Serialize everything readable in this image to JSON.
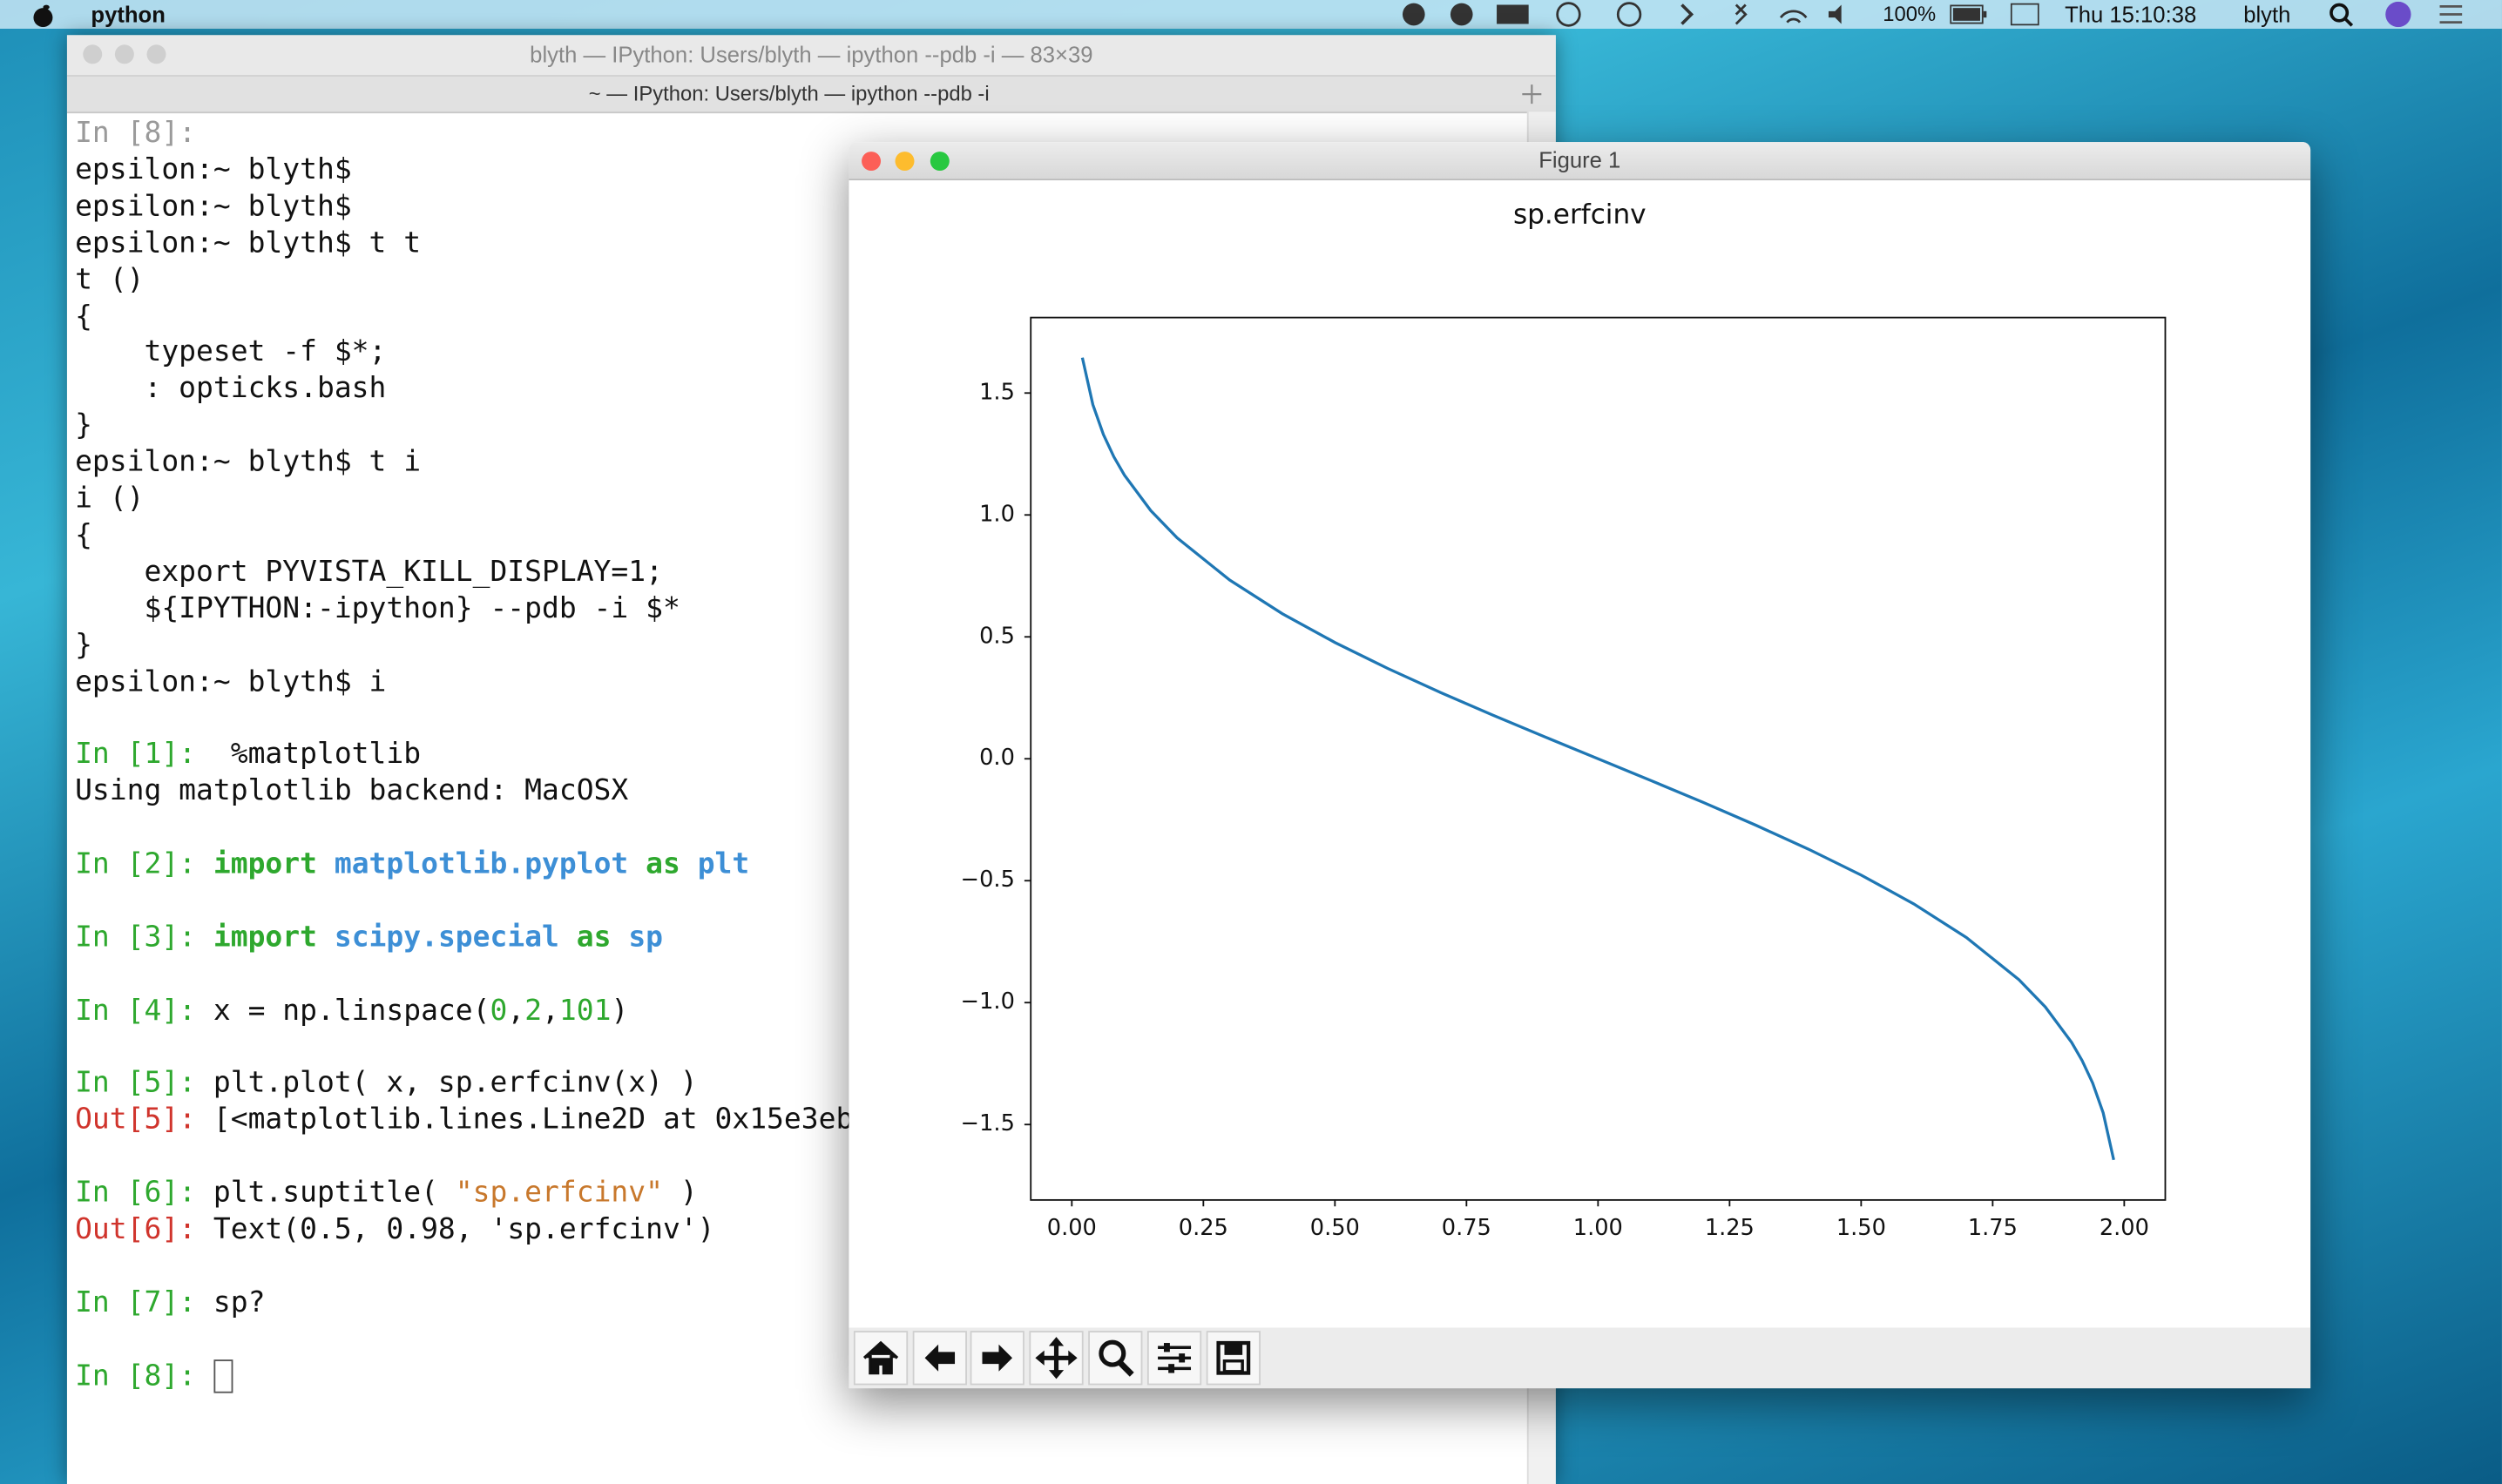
{
  "menu_bar": {
    "app": "python",
    "battery": "100%",
    "clock": "Thu 15:10:38",
    "user": "blyth"
  },
  "terminal": {
    "title": "blyth — IPython: Users/blyth — ipython --pdb -i — 83×39",
    "tab": "~ — IPython: Users/blyth — ipython --pdb -i",
    "lines": [
      [
        {
          "text": "In [8]:",
          "color": "#9a9a9a"
        }
      ],
      [
        {
          "text": "epsilon:~ blyth$"
        }
      ],
      [
        {
          "text": "epsilon:~ blyth$"
        }
      ],
      [
        {
          "text": "epsilon:~ blyth$ t t"
        }
      ],
      [
        {
          "text": "t ()"
        }
      ],
      [
        {
          "text": "{"
        }
      ],
      [
        {
          "text": "    typeset -f $*;"
        }
      ],
      [
        {
          "text": "    : opticks.bash"
        }
      ],
      [
        {
          "text": "}"
        }
      ],
      [
        {
          "text": "epsilon:~ blyth$ t i"
        }
      ],
      [
        {
          "text": "i ()"
        }
      ],
      [
        {
          "text": "{"
        }
      ],
      [
        {
          "text": "    export PYVISTA_KILL_DISPLAY=1;"
        }
      ],
      [
        {
          "text": "    ${IPYTHON:-ipython} --pdb -i $*"
        }
      ],
      [
        {
          "text": "}"
        }
      ],
      [
        {
          "text": "epsilon:~ blyth$ i"
        }
      ],
      [],
      [
        {
          "text": "In [1]: ",
          "color": "#2ea82e"
        },
        {
          "text": " %matplotlib"
        }
      ],
      [
        {
          "text": "Using matplotlib backend: MacOSX"
        }
      ],
      [],
      [
        {
          "text": "In [2]: ",
          "color": "#2ea82e"
        },
        {
          "text": "import",
          "color": "#2ea82e",
          "bold": true
        },
        {
          "text": " matplotlib.pyplot ",
          "color": "#3d8fd6",
          "bold": true
        },
        {
          "text": "as",
          "color": "#2ea82e",
          "bold": true
        },
        {
          "text": " plt",
          "color": "#3d8fd6",
          "bold": true
        }
      ],
      [],
      [
        {
          "text": "In [3]: ",
          "color": "#2ea82e"
        },
        {
          "text": "import",
          "color": "#2ea82e",
          "bold": true
        },
        {
          "text": " scipy.special ",
          "color": "#3d8fd6",
          "bold": true
        },
        {
          "text": "as",
          "color": "#2ea82e",
          "bold": true
        },
        {
          "text": " sp",
          "color": "#3d8fd6",
          "bold": true
        }
      ],
      [],
      [
        {
          "text": "In [4]: ",
          "color": "#2ea82e"
        },
        {
          "text": "x = np.linspace("
        },
        {
          "text": "0",
          "color": "#2ea82e"
        },
        {
          "text": ","
        },
        {
          "text": "2",
          "color": "#2ea82e"
        },
        {
          "text": ","
        },
        {
          "text": "101",
          "color": "#2ea82e"
        },
        {
          "text": ")"
        }
      ],
      [],
      [
        {
          "text": "In [5]: ",
          "color": "#2ea82e"
        },
        {
          "text": "plt.plot( x, sp.erfcinv(x) )"
        }
      ],
      [
        {
          "text": "Out[5]: ",
          "color": "#d0342c"
        },
        {
          "text": "[<matplotlib.lines.Line2D at 0x15e3eb"
        }
      ],
      [],
      [
        {
          "text": "In [6]: ",
          "color": "#2ea82e"
        },
        {
          "text": "plt.suptitle( "
        },
        {
          "text": "\"sp.erfcinv\"",
          "color": "#c8782c"
        },
        {
          "text": " )"
        }
      ],
      [
        {
          "text": "Out[6]: ",
          "color": "#d0342c"
        },
        {
          "text": "Text(0.5, 0.98, 'sp.erfcinv')"
        }
      ],
      [],
      [
        {
          "text": "In [7]: ",
          "color": "#2ea82e"
        },
        {
          "text": "sp?"
        }
      ],
      [],
      [
        {
          "text": "In [8]: ",
          "color": "#2ea82e"
        }
      ]
    ]
  },
  "figure": {
    "window_title": "Figure 1",
    "chart_data": {
      "type": "line",
      "title": "sp.erfcinv",
      "x": [
        0.02,
        0.04,
        0.06,
        0.08,
        0.1,
        0.15,
        0.2,
        0.3,
        0.4,
        0.5,
        0.6,
        0.7,
        0.8,
        0.9,
        1.0,
        1.1,
        1.2,
        1.3,
        1.4,
        1.5,
        1.6,
        1.7,
        1.8,
        1.85,
        1.9,
        1.92,
        1.94,
        1.96,
        1.98
      ],
      "series": [
        {
          "color": "#1f77b4",
          "values": [
            1.645,
            1.4522,
            1.3299,
            1.2379,
            1.1631,
            1.0179,
            0.9062,
            0.7329,
            0.5951,
            0.4769,
            0.3708,
            0.2725,
            0.1791,
            0.0889,
            0,
            -0.0889,
            -0.1791,
            -0.2725,
            -0.3708,
            -0.4769,
            -0.5951,
            -0.7329,
            -0.9062,
            -1.0179,
            -1.1631,
            -1.2379,
            -1.3299,
            -1.4522,
            -1.645
          ]
        }
      ],
      "xlim": [
        -0.078,
        2.078
      ],
      "ylim": [
        -1.8095,
        1.8095
      ],
      "xticks": [
        {
          "value": 0,
          "label": "0.00"
        },
        {
          "value": 0.25,
          "label": "0.25"
        },
        {
          "value": 0.5,
          "label": "0.50"
        },
        {
          "value": 0.75,
          "label": "0.75"
        },
        {
          "value": 1,
          "label": "1.00"
        },
        {
          "value": 1.25,
          "label": "1.25"
        },
        {
          "value": 1.5,
          "label": "1.50"
        },
        {
          "value": 1.75,
          "label": "1.75"
        },
        {
          "value": 2,
          "label": "2.00"
        }
      ],
      "yticks": [
        {
          "value": 1.5,
          "label": "1.5"
        },
        {
          "value": 1,
          "label": "1.0"
        },
        {
          "value": 0.5,
          "label": "0.5"
        },
        {
          "value": 0,
          "label": "0.0"
        },
        {
          "value": -0.5,
          "label": "−0.5"
        },
        {
          "value": -1,
          "label": "−1.0"
        },
        {
          "value": -1.5,
          "label": "−1.5"
        }
      ],
      "grid": false
    }
  }
}
